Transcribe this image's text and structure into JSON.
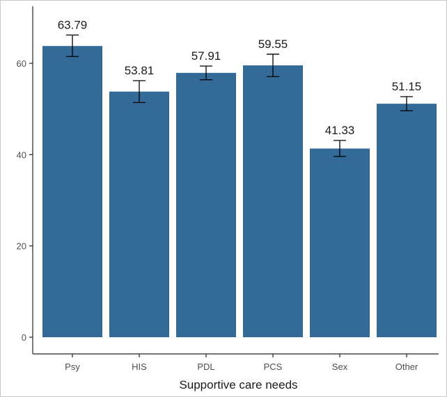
{
  "chart_data": {
    "type": "bar",
    "title": "",
    "xlabel": "Supportive care needs",
    "ylabel": "",
    "categories": [
      "Psy",
      "HIS",
      "PDL",
      "PCS",
      "Sex",
      "Other"
    ],
    "values": [
      63.79,
      53.81,
      57.91,
      59.55,
      41.33,
      51.15
    ],
    "value_labels": [
      "63.79",
      "53.81",
      "57.91",
      "59.55",
      "41.33",
      "51.15"
    ],
    "error_low": [
      61.5,
      51.4,
      56.4,
      57.1,
      39.6,
      49.6
    ],
    "error_high": [
      66.2,
      56.2,
      59.4,
      62.0,
      43.1,
      52.7
    ],
    "ylim": [
      0,
      72.5
    ],
    "yticks": [
      0,
      20,
      40,
      60
    ],
    "ytick_labels": [
      "0",
      "20",
      "40",
      "60"
    ],
    "grid": false,
    "legend": "none",
    "bar_color": "#336a98",
    "error_color": "#000000"
  }
}
